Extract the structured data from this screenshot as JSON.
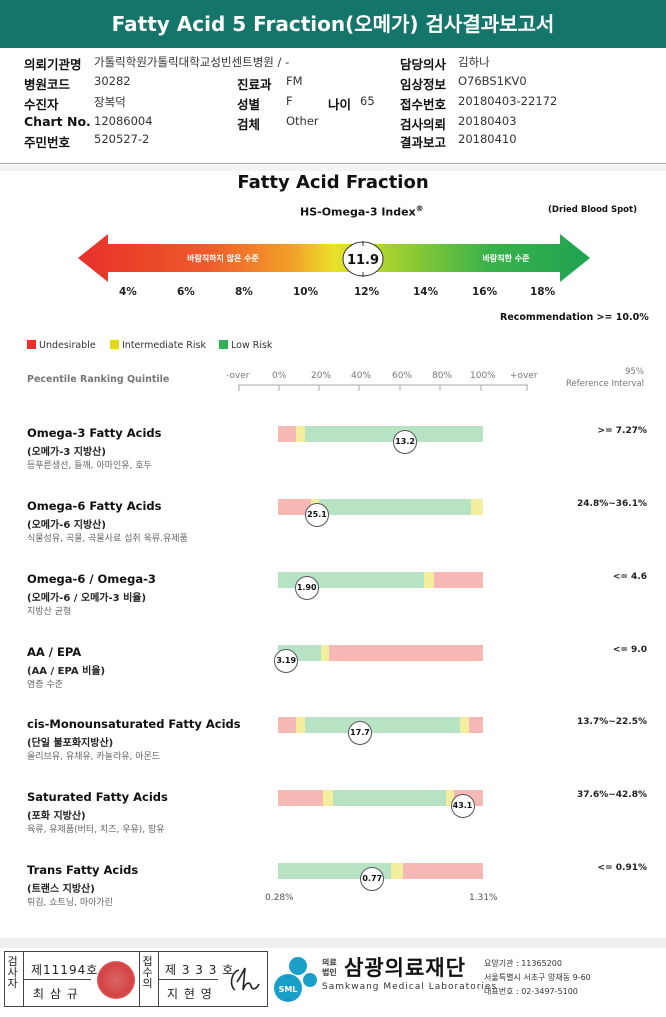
{
  "header": {
    "title": "Fatty Acid 5 Fraction(오메가) 검사결과보고서"
  },
  "info": {
    "institution_label": "의뢰기관명",
    "institution_value": "가톨릭학원가톨릭대학교성빈센트병원 / -",
    "hospital_code_label": "병원코드",
    "hospital_code_value": "30282",
    "department_label": "진료과",
    "department_value": "FM",
    "patient_label": "수진자",
    "patient_value": "장복덕",
    "sex_label": "성별",
    "sex_value": "F",
    "age_label": "나이",
    "age_value": "65",
    "chart_label": "Chart No.",
    "chart_value": "12086004",
    "specimen_label": "검체",
    "specimen_value": "Other",
    "resident_label": "주민번호",
    "resident_value": "520527-2",
    "doctor_label": "담당의사",
    "doctor_value": "김하나",
    "clinical_label": "임상정보",
    "clinical_value": "O76BS1KV0",
    "receipt_label": "접수번호",
    "receipt_value": "20180403-22172",
    "request_label": "검사의뢰",
    "request_value": "20180403",
    "report_label": "결과보고",
    "report_value": "20180410"
  },
  "fraction": {
    "title": "Fatty Acid Fraction",
    "index_title": "HS-Omega-3 Index",
    "index_sup": "®",
    "dried_blood_spot": "(Dried Blood Spot)",
    "undesirable_text": "바람직하지 않은 수준",
    "desirable_text": "바람직한 수준",
    "index_value": "11.9",
    "ticks": [
      "4%",
      "6%",
      "8%",
      "10%",
      "12%",
      "14%",
      "16%",
      "18%"
    ],
    "recommendation": "Recommendation  >= 10.0%"
  },
  "legend": {
    "undesirable": "Undesirable",
    "intermediate": "Intermediate Risk",
    "low": "Low Risk",
    "colors": {
      "red": "#e8302a",
      "yellow": "#e4d61e",
      "green": "#2fb254"
    }
  },
  "scale": {
    "label": "Pecentile Ranking Quintile",
    "ticks": [
      "-over",
      "0%",
      "20%",
      "40%",
      "60%",
      "80%",
      "100%",
      "+over"
    ],
    "ref_line1": "95%",
    "ref_line2": "Reference Interval"
  },
  "rows": [
    {
      "name": "Omega-3 Fatty Acids",
      "kor": "(오메가-3 지방산)",
      "desc": "등푸른생선, 들깨, 아마인유, 호두",
      "value": "13.2",
      "ref": ">= 7.27%",
      "position": 0.62,
      "segments": [
        [
          "red",
          0.09
        ],
        [
          "yellow",
          0.04
        ],
        [
          "green",
          0.87
        ]
      ]
    },
    {
      "name": "Omega-6 Fatty Acids",
      "kor": "(오메가-6 지방산)",
      "desc": "식물성유, 곡물, 곡물사료 섭취 육류.유제품",
      "value": "25.1",
      "ref": "24.8%~36.1%",
      "position": 0.19,
      "segments": [
        [
          "red",
          0.16
        ],
        [
          "yellow",
          0.04
        ],
        [
          "green",
          0.74
        ],
        [
          "yellow",
          0.06
        ]
      ]
    },
    {
      "name": "Omega-6 / Omega-3",
      "kor": "(오메가-6 / 오메가-3 비율)",
      "desc": "지방산 균형",
      "value": "1.90",
      "ref": "<= 4.6",
      "position": 0.14,
      "segments": [
        [
          "green",
          0.71
        ],
        [
          "yellow",
          0.05
        ],
        [
          "red",
          0.24
        ]
      ]
    },
    {
      "name": "AA / EPA",
      "kor": "(AA / EPA 비율)",
      "desc": "염증 수준",
      "value": "3.19",
      "ref": "<= 9.0",
      "position": 0.04,
      "segments": [
        [
          "green",
          0.21
        ],
        [
          "yellow",
          0.04
        ],
        [
          "red",
          0.75
        ]
      ]
    },
    {
      "name": "cis-Monounsaturated Fatty Acids",
      "kor": "(단일 불포화지방산)",
      "desc": "올리브유, 유채유, 카놀라유, 아몬드",
      "value": "17.7",
      "ref": "13.7%~22.5%",
      "position": 0.4,
      "segments": [
        [
          "red",
          0.09
        ],
        [
          "yellow",
          0.04
        ],
        [
          "green",
          0.76
        ],
        [
          "yellow",
          0.04
        ],
        [
          "red",
          0.07
        ]
      ]
    },
    {
      "name": "Saturated Fatty Acids",
      "kor": "(포화 지방산)",
      "desc": "육류, 유제품(버터, 치즈, 우유), 팜유",
      "value": "43.1",
      "ref": "37.6%~42.8%",
      "position": 0.9,
      "segments": [
        [
          "red",
          0.22
        ],
        [
          "yellow",
          0.05
        ],
        [
          "green",
          0.55
        ],
        [
          "yellow",
          0.04
        ],
        [
          "red",
          0.14
        ]
      ]
    },
    {
      "name": "Trans Fatty Acids",
      "kor": "(트랜스 지방산)",
      "desc": "튀김, 쇼트닝, 마아가린",
      "value": "0.77",
      "ref": "<= 0.91%",
      "position": 0.46,
      "segments": [
        [
          "green",
          0.55
        ],
        [
          "yellow",
          0.06
        ],
        [
          "red",
          0.39
        ]
      ]
    }
  ],
  "trans_range": {
    "min": "0.28%",
    "max": "1.31%"
  },
  "footer": {
    "inspector_label": "검사자",
    "inspector_no": "제11194호",
    "inspector_name": "최 삼 규",
    "approver_label": "접수의",
    "approver_no": "제 3 3 3 호",
    "approver_name": "지 현 영",
    "org_small_1": "의료",
    "org_small_2": "법인",
    "org_name": "삼광의료재단",
    "org_eng": "Samkwang Medical Laboratories",
    "org_code": "요양기관 : 11365200",
    "org_address": "서울특별시 서초구 양재동 9-60",
    "org_phone": "대표번호 : 02-3497-5100",
    "logo_text": "SML"
  }
}
